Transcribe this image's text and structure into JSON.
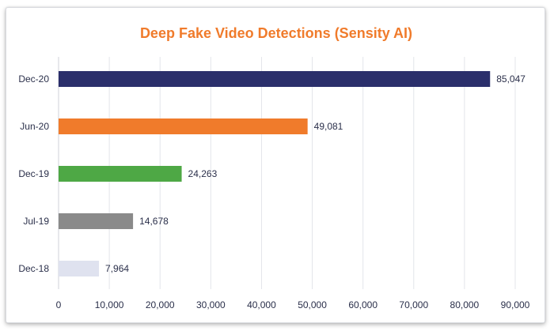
{
  "chart_data": {
    "type": "bar",
    "orientation": "horizontal",
    "title": "Deep Fake Video Detections (Sensity AI)",
    "title_color": "#f07b2b",
    "categories": [
      "Dec-20",
      "Jun-20",
      "Dec-19",
      "Jul-19",
      "Dec-18"
    ],
    "values": [
      85047,
      49081,
      24263,
      14678,
      7964
    ],
    "value_labels": [
      "85,047",
      "49,081",
      "24,263",
      "14,678",
      "7,964"
    ],
    "colors": [
      "#2b2f6b",
      "#f07b2b",
      "#4ea845",
      "#8a8a8a",
      "#dfe2ef"
    ],
    "xlim": [
      0,
      90000
    ],
    "xticks": [
      0,
      10000,
      20000,
      30000,
      40000,
      50000,
      60000,
      70000,
      80000,
      90000
    ],
    "xtick_labels": [
      "0",
      "10,000",
      "20,000",
      "30,000",
      "40,000",
      "50,000",
      "60,000",
      "70,000",
      "80,000",
      "90,000"
    ],
    "grid": true,
    "legend": "none"
  }
}
